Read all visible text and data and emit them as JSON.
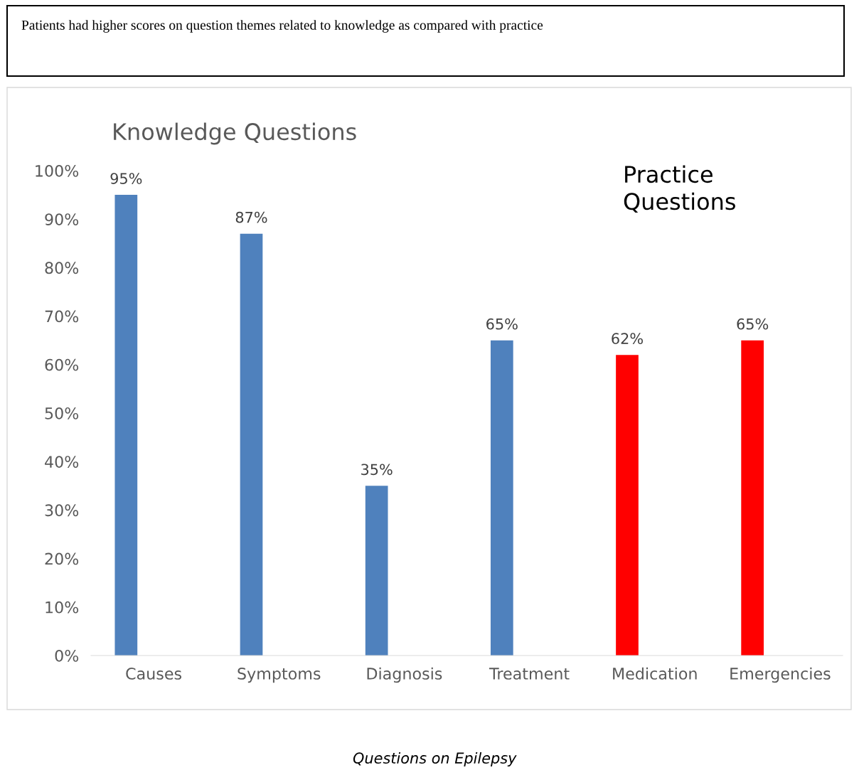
{
  "chart_data": {
    "type": "bar",
    "title": "Knowledge Questions",
    "annotations": [
      "Patients had higher scores on question themes related to knowledge as compared with practice",
      "Practice\nQuestions",
      "Questions on Epilepsy"
    ],
    "categories": [
      "Causes",
      "Symptoms",
      "Diagnosis",
      "Treatment",
      "Medication",
      "Emergencies"
    ],
    "values": [
      95,
      87,
      35,
      65,
      62,
      65
    ],
    "colors": [
      "#4f81bd",
      "#4f81bd",
      "#4f81bd",
      "#4f81bd",
      "#ff0000",
      "#ff0000"
    ],
    "value_labels": [
      "95%",
      "87%",
      "35%",
      "65%",
      "62%",
      "65%"
    ],
    "ylim": [
      0,
      100
    ],
    "yticks": [
      {
        "value": 0,
        "label": "0%"
      },
      {
        "value": 10,
        "label": "10%"
      },
      {
        "value": 20,
        "label": "20%"
      },
      {
        "value": 30,
        "label": "30%"
      },
      {
        "value": 40,
        "label": "40%"
      },
      {
        "value": 50,
        "label": "50%"
      },
      {
        "value": 60,
        "label": "60%"
      },
      {
        "value": 70,
        "label": "70%"
      },
      {
        "value": 80,
        "label": "80%"
      },
      {
        "value": 90,
        "label": "90%"
      },
      {
        "value": 100,
        "label": "100%"
      }
    ],
    "grid": false,
    "legend": false
  }
}
